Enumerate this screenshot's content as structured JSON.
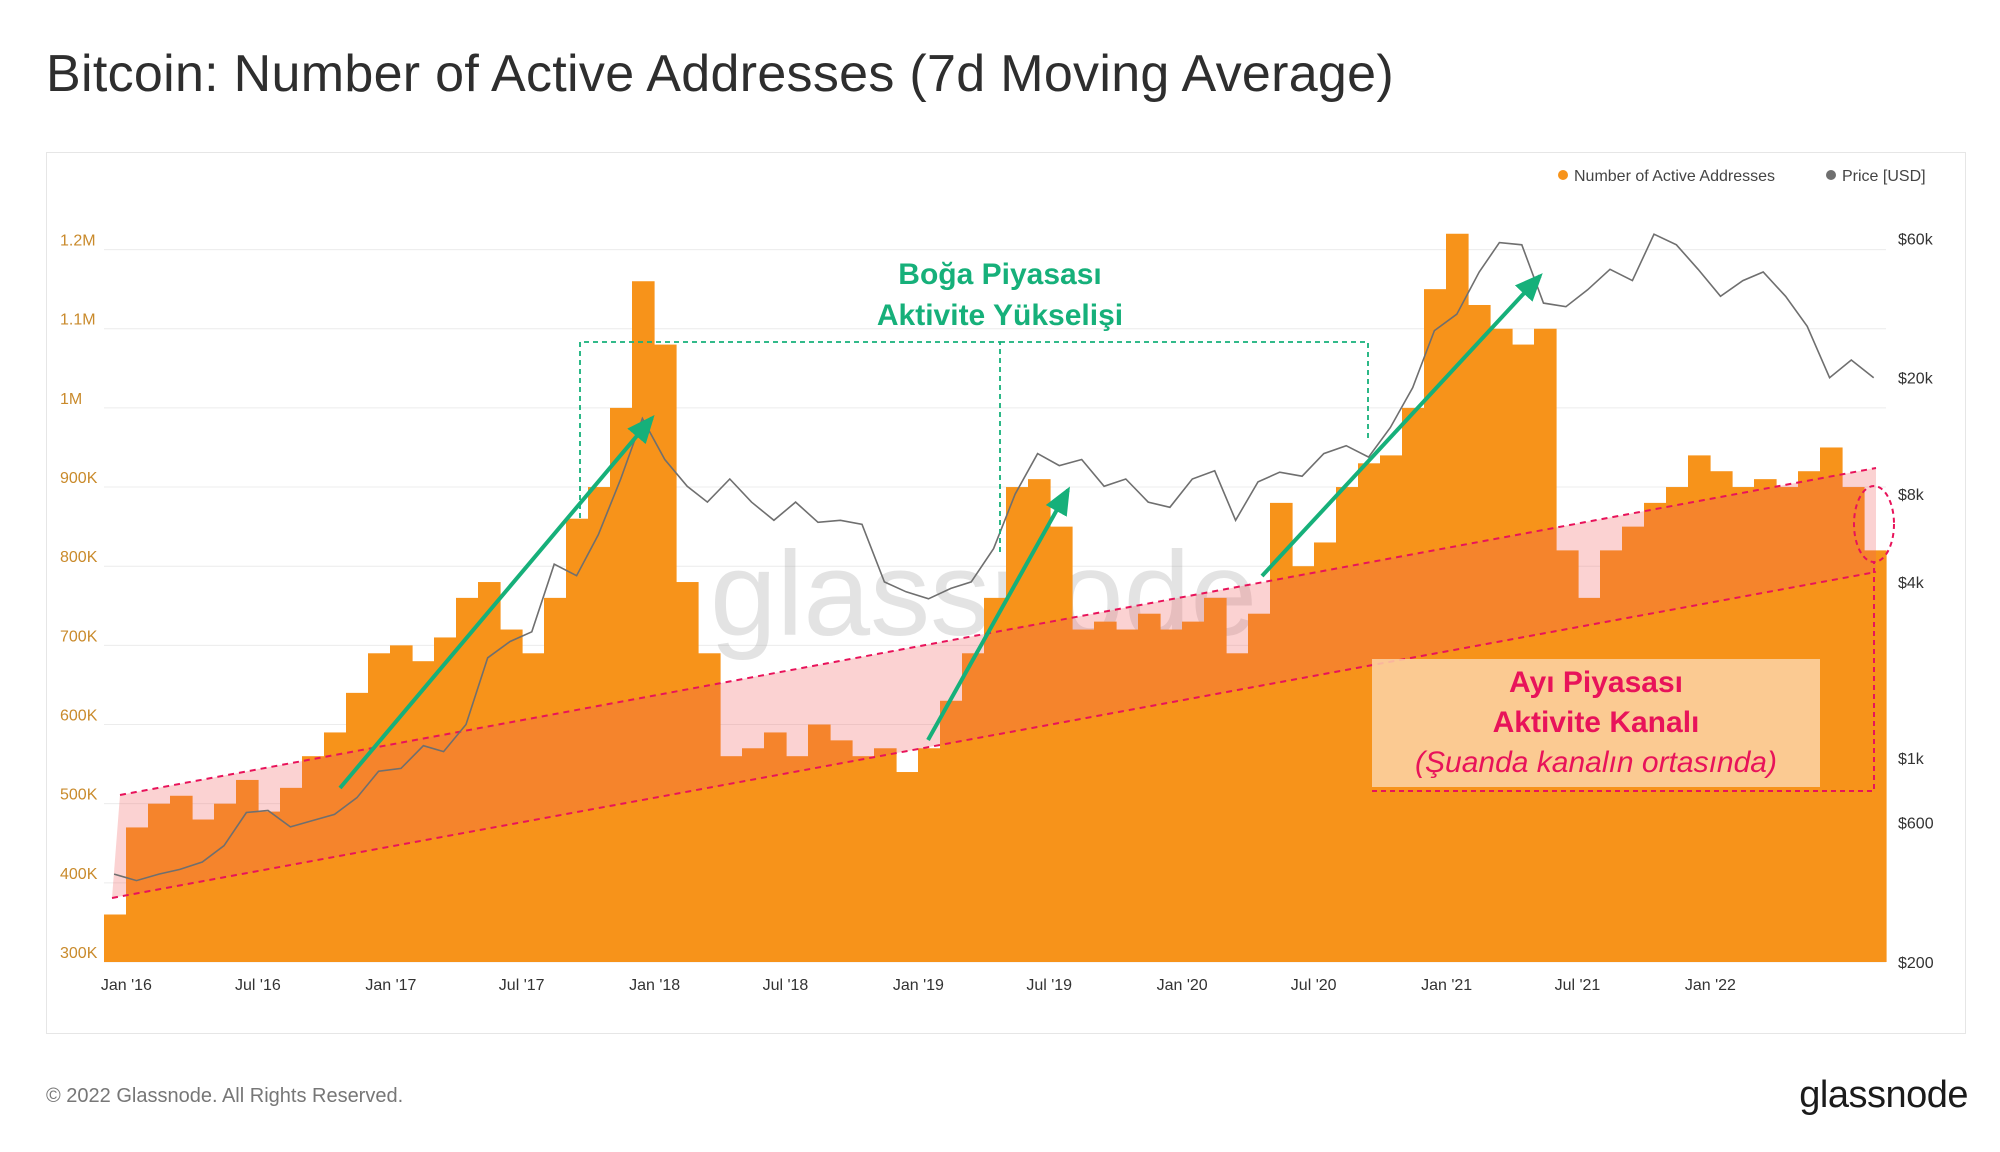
{
  "title": "Bitcoin: Number of Active Addresses (7d Moving Average)",
  "footer": {
    "copyright": "© 2022 Glassnode. All Rights Reserved.",
    "logo": "glassnode"
  },
  "watermark": "glassnode",
  "colors": {
    "addresses": "#f7931a",
    "price": "#6f6f6f",
    "bull": "#16b07a",
    "bear": "#e8135a",
    "channel_fill": "#f9c6d6",
    "bear_box": "#fbd3a8"
  },
  "annotations": {
    "bull_line1": "Boğa Piyasası",
    "bull_line2": "Aktivite Yükselişi",
    "bear_line1": "Ayı Piyasası",
    "bear_line2": "Aktivite Kanalı",
    "bear_line3": "(Şuanda kanalın ortasında)"
  },
  "chart_data": {
    "type": "area",
    "x_ticks": [
      "Jan '16",
      "Jul '16",
      "Jan '17",
      "Jul '17",
      "Jan '18",
      "Jul '18",
      "Jan '19",
      "Jul '19",
      "Jan '20",
      "Jul '20",
      "Jan '21",
      "Jul '21",
      "Jan '22"
    ],
    "x_range": [
      "2015-12-01",
      "2022-09-01"
    ],
    "y_left": {
      "ticks": [
        "300K",
        "400K",
        "500K",
        "600K",
        "700K",
        "800K",
        "900K",
        "1M",
        "1.1M",
        "1.2M"
      ],
      "range": [
        300000,
        1250000
      ]
    },
    "y_right": {
      "ticks": [
        "$200",
        "$600",
        "$1k",
        "$4k",
        "$8k",
        "$20k",
        "$60k"
      ],
      "scale": "log",
      "range": [
        200,
        75000
      ]
    },
    "legend": "top-right",
    "grid": true,
    "series": [
      {
        "name": "Number of Active Addresses",
        "axis": "left",
        "x": [
          "2015-12",
          "2016-01",
          "2016-02",
          "2016-03",
          "2016-04",
          "2016-05",
          "2016-06",
          "2016-07",
          "2016-08",
          "2016-09",
          "2016-10",
          "2016-11",
          "2016-12",
          "2017-01",
          "2017-02",
          "2017-03",
          "2017-04",
          "2017-05",
          "2017-06",
          "2017-07",
          "2017-08",
          "2017-09",
          "2017-10",
          "2017-11",
          "2017-12",
          "2018-01",
          "2018-02",
          "2018-03",
          "2018-04",
          "2018-05",
          "2018-06",
          "2018-07",
          "2018-08",
          "2018-09",
          "2018-10",
          "2018-11",
          "2018-12",
          "2019-01",
          "2019-02",
          "2019-03",
          "2019-04",
          "2019-05",
          "2019-06",
          "2019-07",
          "2019-08",
          "2019-09",
          "2019-10",
          "2019-11",
          "2019-12",
          "2020-01",
          "2020-02",
          "2020-03",
          "2020-04",
          "2020-05",
          "2020-06",
          "2020-07",
          "2020-08",
          "2020-09",
          "2020-10",
          "2020-11",
          "2020-12",
          "2021-01",
          "2021-02",
          "2021-03",
          "2021-04",
          "2021-05",
          "2021-06",
          "2021-07",
          "2021-08",
          "2021-09",
          "2021-10",
          "2021-11",
          "2021-12",
          "2022-01",
          "2022-02",
          "2022-03",
          "2022-04",
          "2022-05",
          "2022-06",
          "2022-07",
          "2022-08"
        ],
        "values": [
          360000,
          470000,
          500000,
          510000,
          480000,
          500000,
          530000,
          490000,
          520000,
          560000,
          590000,
          640000,
          690000,
          700000,
          680000,
          710000,
          760000,
          780000,
          720000,
          690000,
          760000,
          860000,
          900000,
          1000000,
          1160000,
          1080000,
          780000,
          690000,
          560000,
          570000,
          590000,
          560000,
          600000,
          580000,
          560000,
          570000,
          540000,
          570000,
          630000,
          690000,
          760000,
          900000,
          910000,
          850000,
          720000,
          730000,
          720000,
          740000,
          720000,
          730000,
          760000,
          690000,
          740000,
          880000,
          800000,
          830000,
          900000,
          930000,
          940000,
          1000000,
          1150000,
          1220000,
          1130000,
          1100000,
          1080000,
          1100000,
          820000,
          760000,
          820000,
          850000,
          880000,
          900000,
          940000,
          920000,
          900000,
          910000,
          900000,
          920000,
          950000,
          900000,
          820000
        ]
      },
      {
        "name": "Price [USD]",
        "axis": "right",
        "x": [
          "2015-12",
          "2016-01",
          "2016-02",
          "2016-03",
          "2016-04",
          "2016-05",
          "2016-06",
          "2016-07",
          "2016-08",
          "2016-09",
          "2016-10",
          "2016-11",
          "2016-12",
          "2017-01",
          "2017-02",
          "2017-03",
          "2017-04",
          "2017-05",
          "2017-06",
          "2017-07",
          "2017-08",
          "2017-09",
          "2017-10",
          "2017-11",
          "2017-12",
          "2018-01",
          "2018-02",
          "2018-03",
          "2018-04",
          "2018-05",
          "2018-06",
          "2018-07",
          "2018-08",
          "2018-09",
          "2018-10",
          "2018-11",
          "2018-12",
          "2019-01",
          "2019-02",
          "2019-03",
          "2019-04",
          "2019-05",
          "2019-06",
          "2019-07",
          "2019-08",
          "2019-09",
          "2019-10",
          "2019-11",
          "2019-12",
          "2020-01",
          "2020-02",
          "2020-03",
          "2020-04",
          "2020-05",
          "2020-06",
          "2020-07",
          "2020-08",
          "2020-09",
          "2020-10",
          "2020-11",
          "2020-12",
          "2021-01",
          "2021-02",
          "2021-03",
          "2021-04",
          "2021-05",
          "2021-06",
          "2021-07",
          "2021-08",
          "2021-09",
          "2021-10",
          "2021-11",
          "2021-12",
          "2022-01",
          "2022-02",
          "2022-03",
          "2022-04",
          "2022-05",
          "2022-06",
          "2022-07",
          "2022-08"
        ],
        "values": [
          400,
          380,
          400,
          415,
          440,
          500,
          650,
          660,
          580,
          610,
          640,
          730,
          900,
          920,
          1100,
          1050,
          1300,
          2200,
          2500,
          2700,
          4600,
          4200,
          5800,
          9000,
          14500,
          10500,
          8500,
          7500,
          9000,
          7500,
          6500,
          7500,
          6400,
          6500,
          6300,
          4000,
          3700,
          3500,
          3800,
          4000,
          5200,
          8000,
          11000,
          10000,
          10500,
          8500,
          9000,
          7500,
          7200,
          9000,
          9600,
          6500,
          8800,
          9500,
          9200,
          11000,
          11700,
          10700,
          13500,
          18500,
          29000,
          33000,
          46000,
          58000,
          57000,
          36000,
          35000,
          40000,
          47000,
          43000,
          62000,
          57000,
          47000,
          38000,
          43000,
          46000,
          38000,
          30000,
          20000,
          23000,
          20000
        ]
      }
    ]
  }
}
